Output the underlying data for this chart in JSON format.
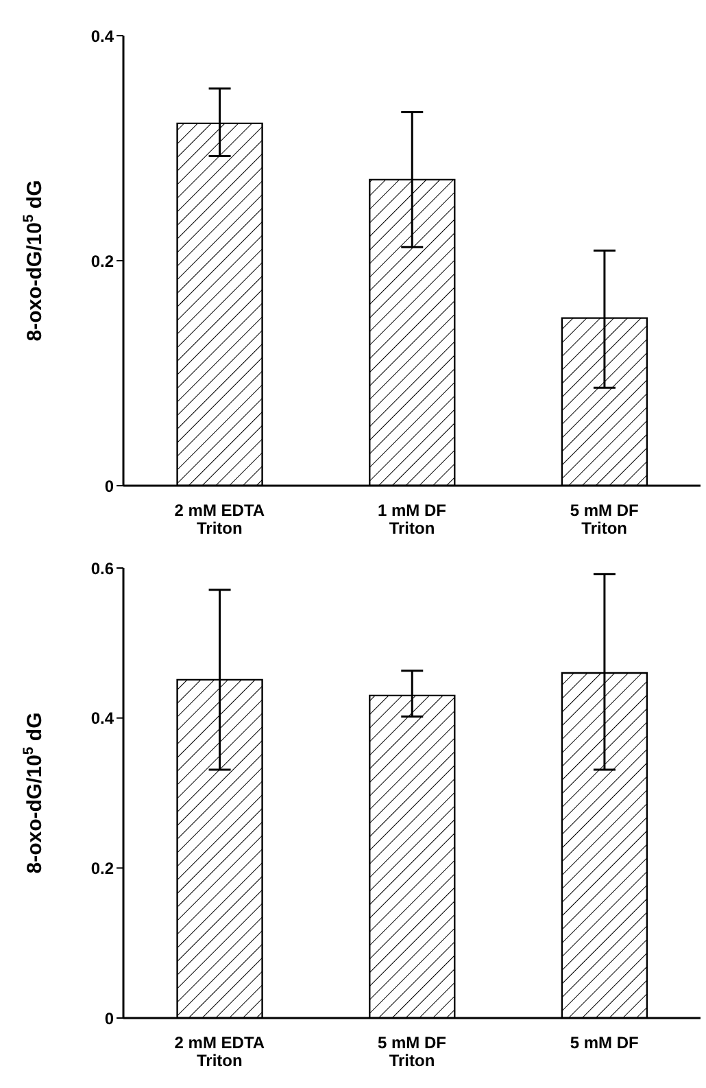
{
  "chart_data": [
    {
      "type": "bar",
      "ylabel": "8-oxo-dG/10$^{5}$ dG",
      "categories": [
        "2 mM EDTA\nTriton",
        "1 mM DF\nTriton",
        "5 mM DF\nTriton"
      ],
      "values": [
        0.322,
        0.272,
        0.149
      ],
      "errors": [
        [
          0.293,
          0.353
        ],
        [
          0.212,
          0.332
        ],
        [
          0.087,
          0.209
        ]
      ],
      "color": "#000000",
      "ylim": [
        0,
        0.4
      ],
      "yticks": [
        0,
        0.2,
        0.4
      ],
      "grid": false,
      "legend": false
    },
    {
      "type": "bar",
      "ylabel": "8-oxo-dG/10$^{5}$ dG",
      "categories": [
        "2 mM EDTA\nTriton",
        "5 mM DF\nTriton",
        "5 mM DF"
      ],
      "values": [
        0.451,
        0.43,
        0.46
      ],
      "errors": [
        [
          0.331,
          0.571
        ],
        [
          0.402,
          0.463
        ],
        [
          0.331,
          0.592
        ]
      ],
      "color": "#000000",
      "ylim": [
        0,
        0.6
      ],
      "yticks": [
        0,
        0.2,
        0.4,
        0.6
      ],
      "grid": false,
      "legend": false
    }
  ]
}
